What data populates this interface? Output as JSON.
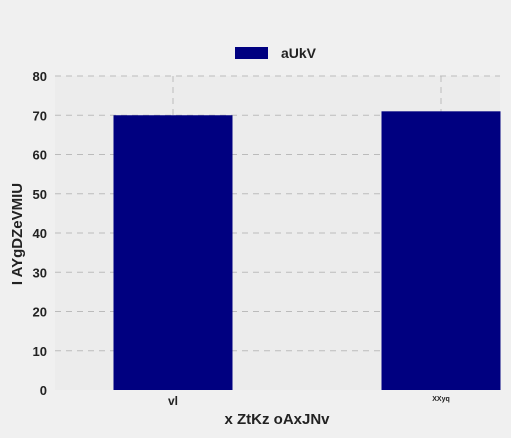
{
  "chart_data": {
    "type": "bar",
    "categories": [
      "vl",
      "XXyq"
    ],
    "series": [
      {
        "name": "aUkV",
        "values": [
          70,
          71
        ]
      }
    ],
    "xlabel": "x ZtKz oAxJNv",
    "ylabel": "I AYgDZeVMIU",
    "ylim": [
      0,
      80
    ],
    "yticks": [
      0,
      10,
      20,
      30,
      40,
      50,
      60,
      70,
      80
    ],
    "grid": true,
    "legend_position": "top-center",
    "colors": {
      "bar": "#000080",
      "background": "#f0f0f0",
      "plot_background": "#ececec",
      "grid": "#bbbbbb"
    }
  }
}
